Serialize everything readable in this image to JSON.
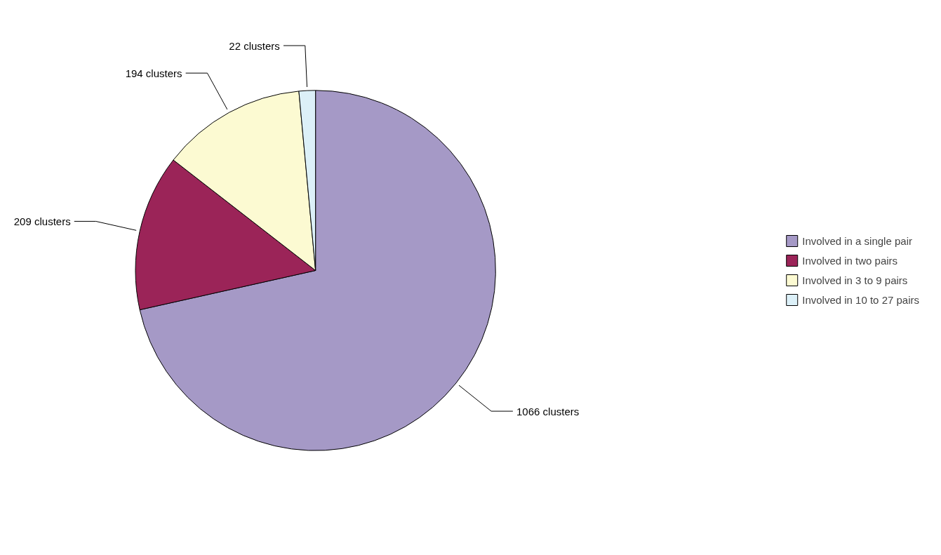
{
  "chart_data": {
    "type": "pie",
    "categories": [
      "Involved in a single pair",
      "Involved in two pairs",
      "Involved in 3 to 9 pairs",
      "Involved in 10 to 27 pairs"
    ],
    "values": [
      1066,
      209,
      194,
      22
    ],
    "colors": [
      "#a599c6",
      "#9b2458",
      "#fcfad2",
      "#dcf0f8"
    ],
    "value_labels": [
      "1066 clusters",
      "209 clusters",
      "194 clusters",
      "22 clusters"
    ],
    "legend": "right"
  }
}
